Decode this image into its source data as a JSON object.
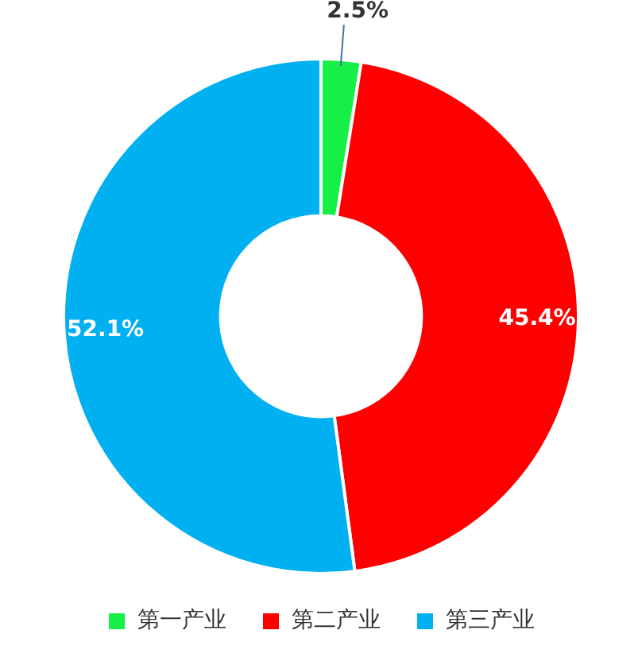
{
  "chart_data": {
    "type": "donut",
    "categories": [
      "第一产业",
      "第二产业",
      "第三产业"
    ],
    "values": [
      2.5,
      45.4,
      52.1
    ],
    "colors": [
      "#16ef45",
      "#ff0000",
      "#00b0f0"
    ],
    "value_labels": [
      "2.5%",
      "45.4%",
      "52.1%"
    ],
    "legend": "bottom"
  }
}
